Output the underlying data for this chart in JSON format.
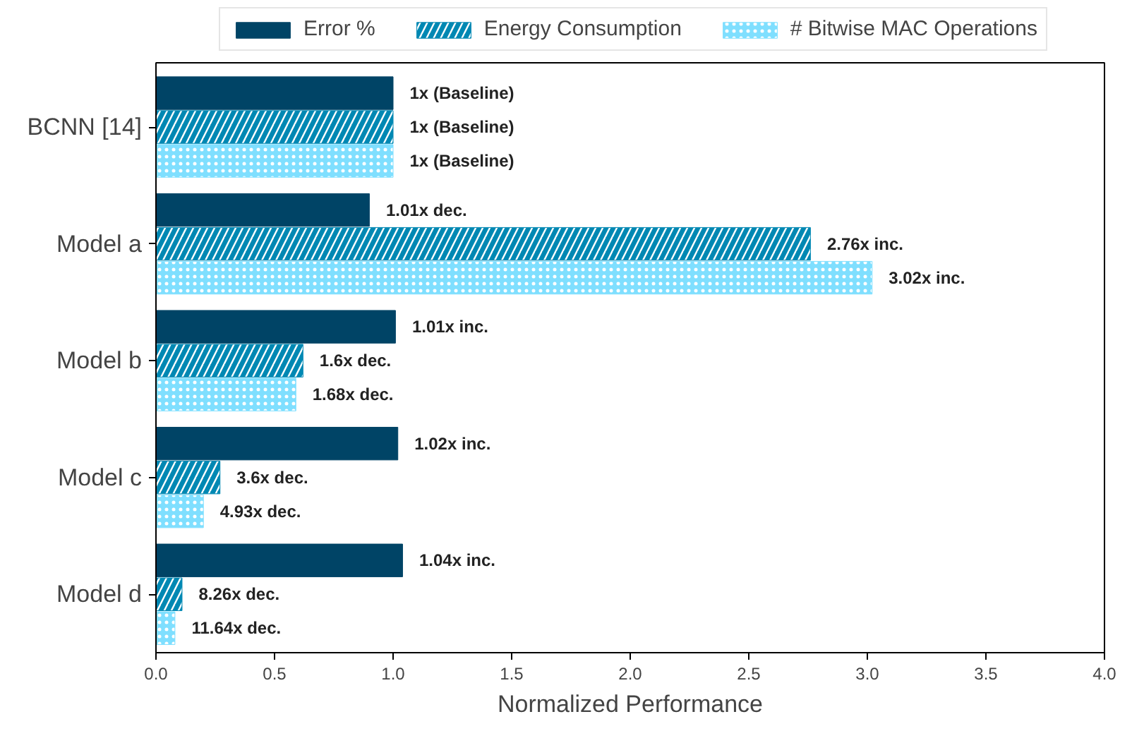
{
  "chart_data": {
    "type": "bar",
    "orientation": "horizontal",
    "xlabel": "Normalized Performance",
    "categories": [
      "BCNN [14]",
      "Model a",
      "Model b",
      "Model c",
      "Model d"
    ],
    "xlim": [
      0,
      4
    ],
    "xticks": [
      {
        "value": 0,
        "label": "0.0"
      },
      {
        "value": 0.5,
        "label": "0.5"
      },
      {
        "value": 1,
        "label": "1.0"
      },
      {
        "value": 1.5,
        "label": "1.5"
      },
      {
        "value": 2,
        "label": "2.0"
      },
      {
        "value": 2.5,
        "label": "2.5"
      },
      {
        "value": 3,
        "label": "3.0"
      },
      {
        "value": 3.5,
        "label": "3.5"
      },
      {
        "value": 4,
        "label": "4.0"
      }
    ],
    "grid": false,
    "legend": "top",
    "series": [
      {
        "name": "Error %",
        "color": "#004466",
        "values": [
          1,
          0.9,
          1.01,
          1.02,
          1.04
        ],
        "value_labels": [
          "1x (Baseline)",
          "1.01x dec.",
          "1.01x inc.",
          "1.02x inc.",
          "1.04x inc."
        ]
      },
      {
        "name": "Energy Consumption",
        "color": "#0088b3",
        "values": [
          1,
          2.76,
          0.62,
          0.27,
          0.11
        ],
        "value_labels": [
          "1x (Baseline)",
          "2.76x inc.",
          "1.6x dec.",
          "3.6x dec.",
          "8.26x dec."
        ]
      },
      {
        "name": "# Bitwise MAC Operations",
        "color": "#7fdfff",
        "values": [
          1,
          3.02,
          0.59,
          0.2,
          0.08
        ],
        "value_labels": [
          "1x (Baseline)",
          "3.02x inc.",
          "1.68x dec.",
          "4.93x dec.",
          "11.64x dec."
        ]
      }
    ]
  }
}
